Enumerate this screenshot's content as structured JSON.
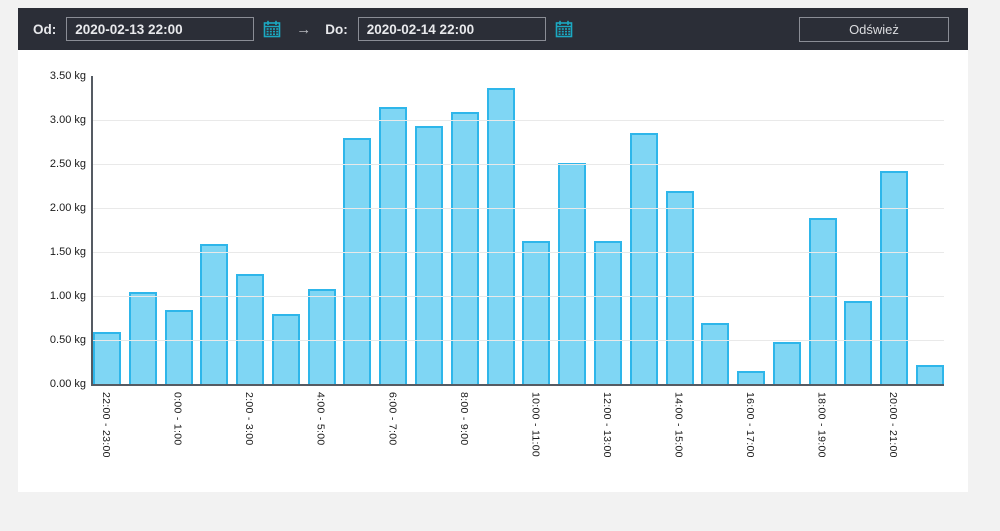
{
  "header": {
    "from_label": "Od:",
    "from_input": {
      "value": "2020-02-13 22:00"
    },
    "arrow_icon": "→",
    "to_label": "Do:",
    "to_input": {
      "value": "2020-02-14 22:00"
    },
    "refresh_label": "Odśwież"
  },
  "colors": {
    "page_bg": "#f2f2f2",
    "header_bg": "#2b2e37",
    "panel_bg": "#ffffff",
    "bar_fill": "#7fd6f4",
    "bar_border": "#2eb6ea",
    "calendar_icon": "#1ba9c2",
    "axis": "#555b63",
    "gridline": "#e9e9e9"
  },
  "chart_data": {
    "type": "bar",
    "unit": "kg",
    "title": "",
    "xlabel": "",
    "ylabel": "",
    "ylim": [
      0,
      3.5
    ],
    "grid": true,
    "legend": false,
    "y_tick_labels": [
      "0.00 kg",
      "0.50 kg",
      "1.00 kg",
      "1.50 kg",
      "2.00 kg",
      "2.50 kg",
      "3.00 kg",
      "3.50 kg"
    ],
    "x_tick_labels": [
      "22:00 - 23:00",
      "0:00 - 1:00",
      "2:00 - 3:00",
      "4:00 - 5:00",
      "6:00 - 7:00",
      "8:00 - 9:00",
      "10:00 - 11:00",
      "12:00 - 13:00",
      "14:00 - 15:00",
      "16:00 - 17:00",
      "18:00 - 19:00",
      "20:00 - 21:00"
    ],
    "x_tick_every": 2,
    "values": [
      0.59,
      1.04,
      0.84,
      1.59,
      1.25,
      0.79,
      1.08,
      2.8,
      3.15,
      2.93,
      3.09,
      3.36,
      1.63,
      2.51,
      1.63,
      2.85,
      2.19,
      0.69,
      0.15,
      0.48,
      1.89,
      0.94,
      2.42,
      0.22
    ]
  }
}
